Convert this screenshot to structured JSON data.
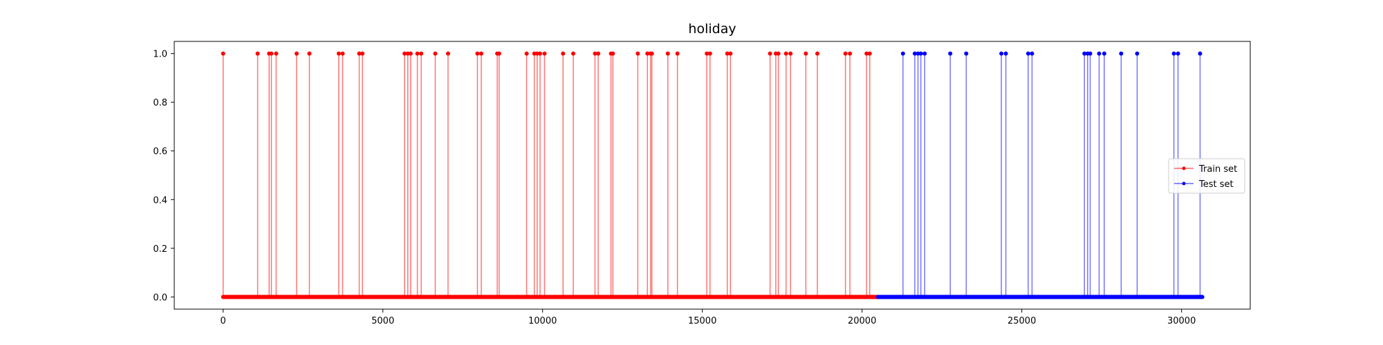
{
  "chart_data": {
    "type": "line",
    "title": "holiday",
    "xlabel": "",
    "ylabel": "",
    "xlim": [
      -1530,
      32150
    ],
    "ylim": [
      -0.05,
      1.05
    ],
    "x_ticks": [
      0,
      5000,
      10000,
      15000,
      20000,
      25000,
      30000
    ],
    "x_tick_labels": [
      "0",
      "5000",
      "10000",
      "15000",
      "20000",
      "25000",
      "30000"
    ],
    "y_ticks": [
      0.0,
      0.2,
      0.4,
      0.6,
      0.8,
      1.0
    ],
    "y_tick_labels": [
      "0.0",
      "0.2",
      "0.4",
      "0.6",
      "0.8",
      "1.0"
    ],
    "grid": false,
    "legend_position": "center-right",
    "series": [
      {
        "name": "Train set",
        "color": "#ff0000",
        "x_range": [
          0,
          20500
        ],
        "baseline_value": 0,
        "spike_value": 1,
        "spike_x": [
          0,
          1080,
          1440,
          1510,
          1660,
          2300,
          2700,
          3620,
          3740,
          4260,
          4360,
          5680,
          5780,
          5870,
          6080,
          6200,
          6640,
          7040,
          7960,
          8080,
          8580,
          8640,
          9500,
          9740,
          9830,
          9920,
          10060,
          10640,
          10960,
          11640,
          11740,
          12140,
          12200,
          12980,
          13280,
          13380,
          13420,
          13920,
          14220,
          15140,
          15240,
          15780,
          15880,
          17120,
          17300,
          17380,
          17620,
          17760,
          18240,
          18600,
          19480,
          19620,
          20140,
          20240
        ]
      },
      {
        "name": "Test set",
        "color": "#0000ff",
        "x_range": [
          20500,
          30650
        ],
        "baseline_value": 0,
        "spike_value": 1,
        "spike_x": [
          21280,
          21650,
          21750,
          21840,
          21960,
          22760,
          23260,
          24360,
          24500,
          25200,
          25320,
          26960,
          27060,
          27140,
          27420,
          27580,
          28110,
          28610,
          29760,
          29890,
          30580
        ]
      }
    ]
  }
}
